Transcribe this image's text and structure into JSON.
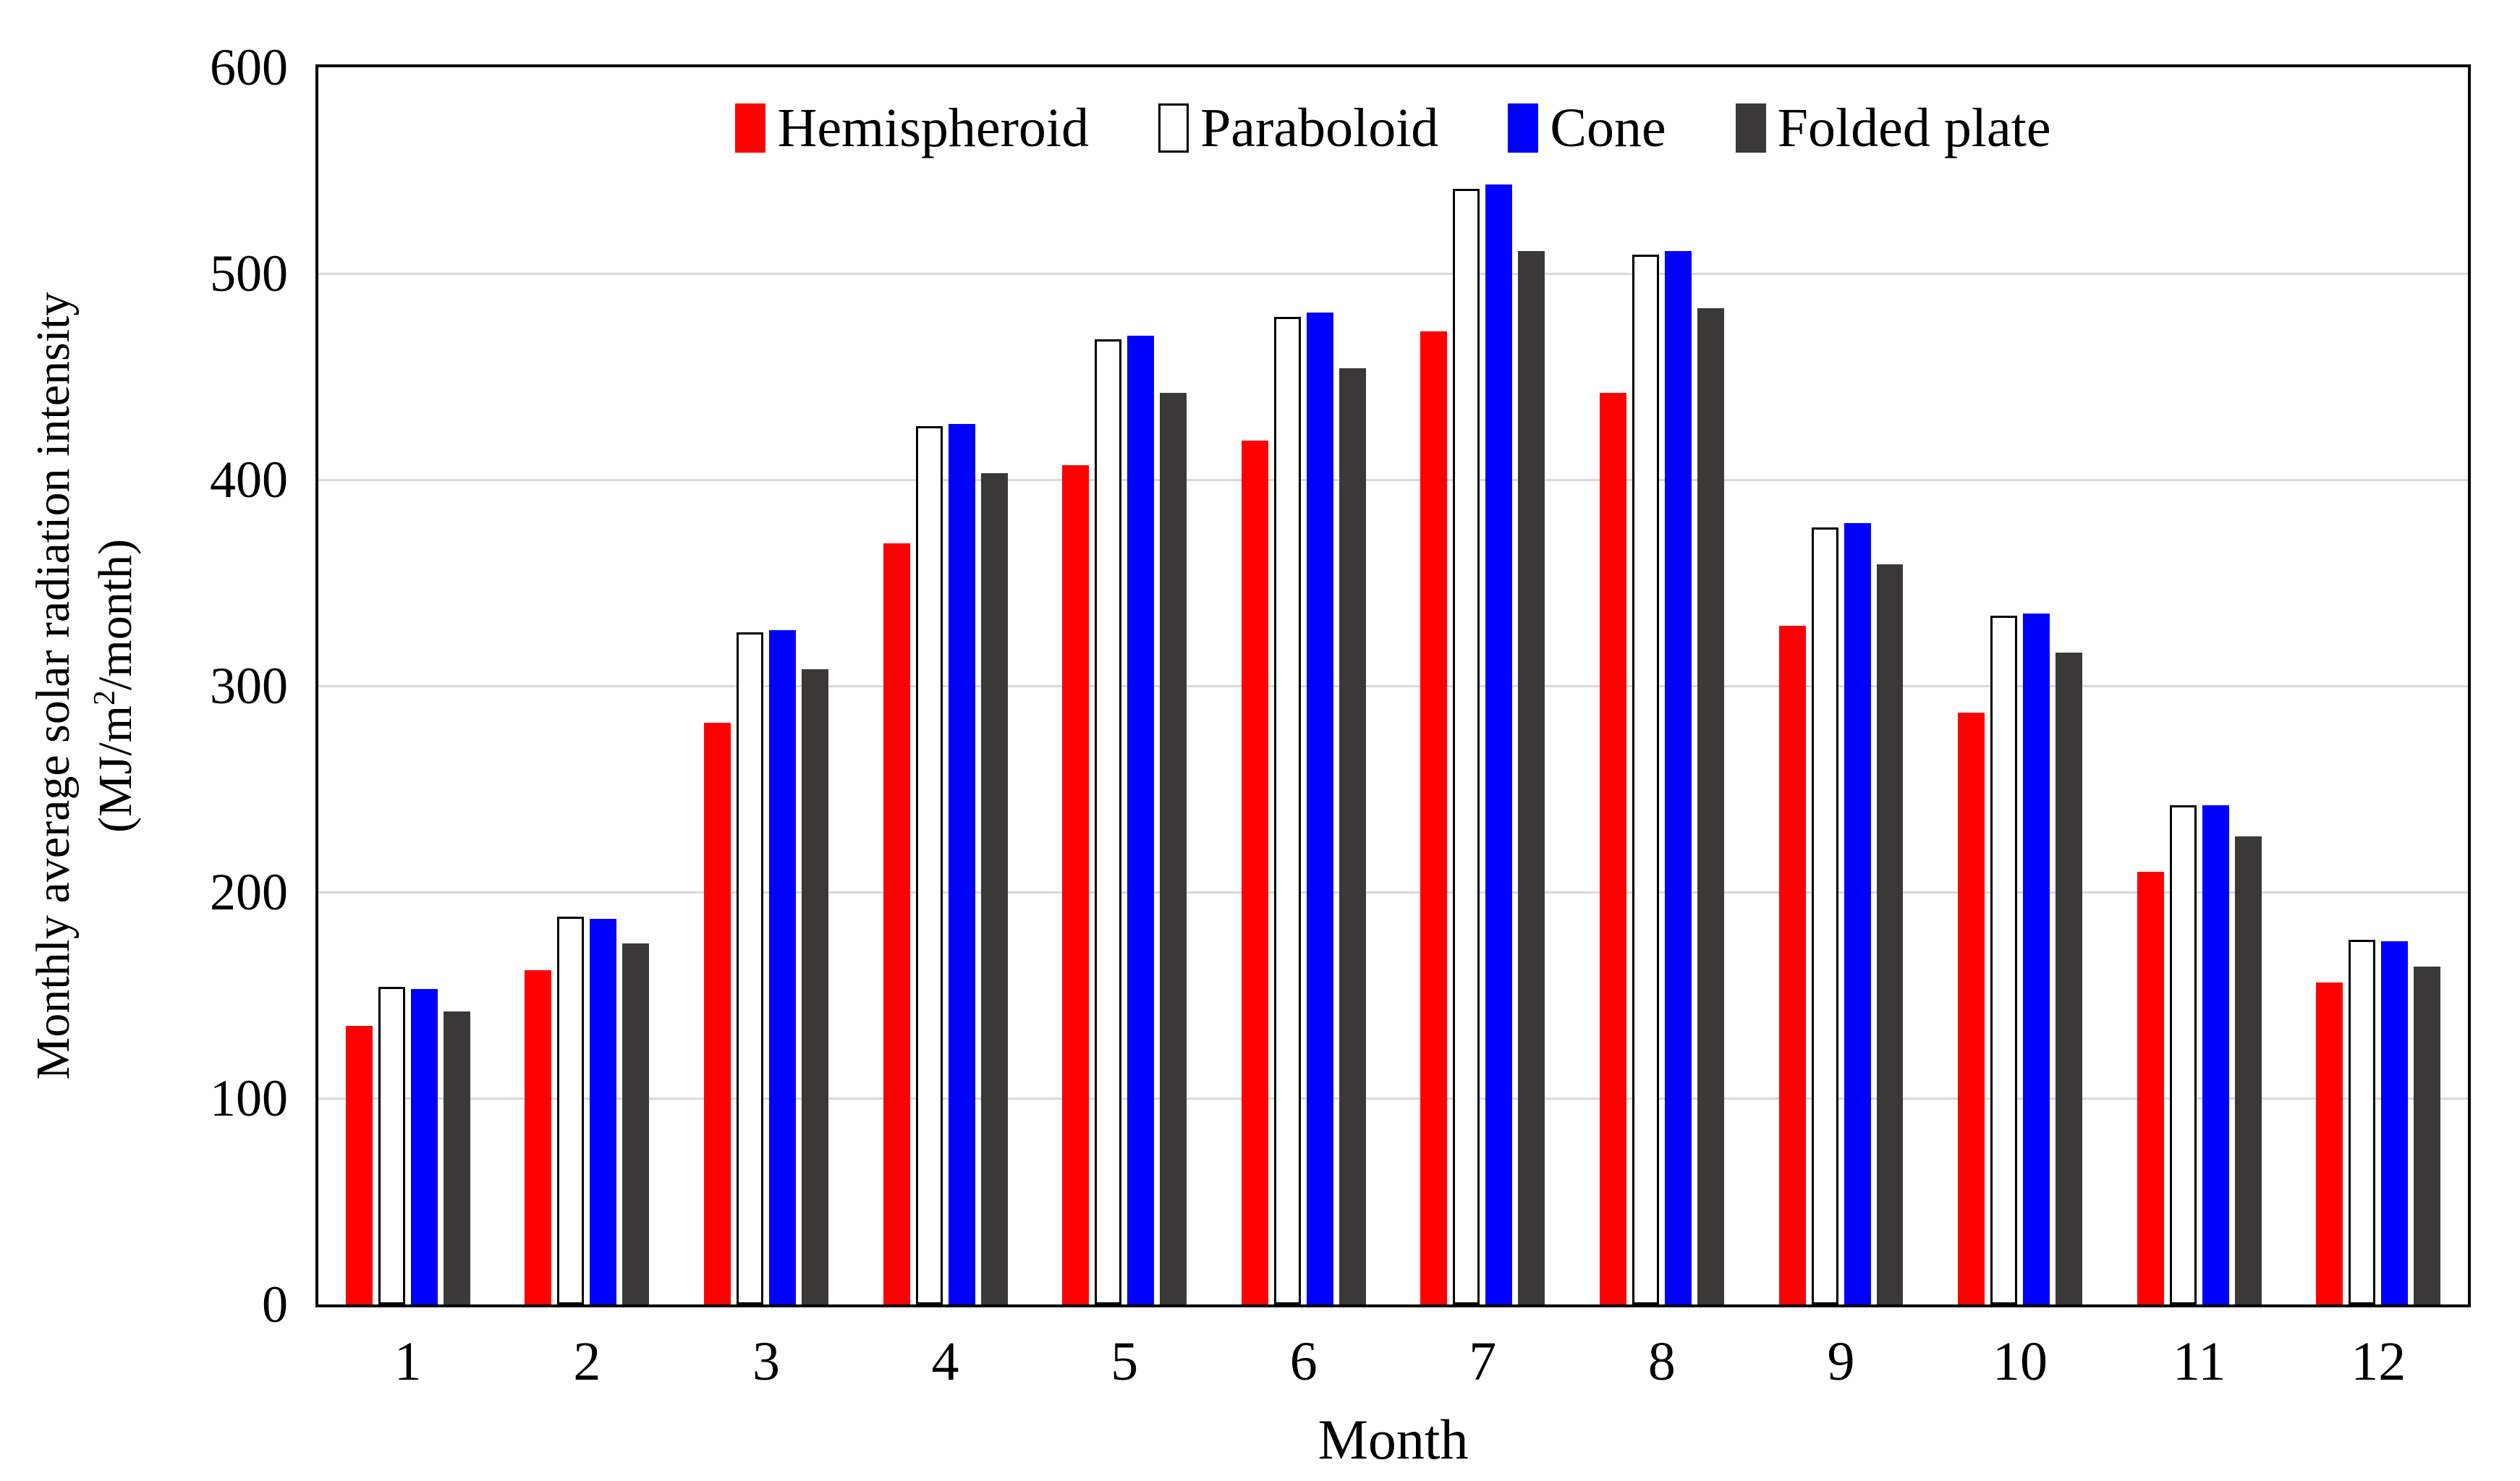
{
  "figure": {
    "background": "#ffffff",
    "frame_color": "#000000",
    "grid_color": "#d9d9d9",
    "y_axis": {
      "title_line1": "Monthly average solar radiation intensity",
      "title_line2_prefix": "(MJ/m",
      "title_line2_sup": "2",
      "title_line2_suffix": "/month)",
      "tick_labels": [
        "0",
        "100",
        "200",
        "300",
        "400",
        "500",
        "600"
      ],
      "tick_values": [
        0,
        100,
        200,
        300,
        400,
        500,
        600
      ],
      "max": 600
    },
    "x_axis": {
      "title": "Month",
      "labels": [
        "1",
        "2",
        "3",
        "4",
        "5",
        "6",
        "7",
        "8",
        "9",
        "10",
        "11",
        "12"
      ]
    }
  },
  "chart_data": {
    "type": "bar",
    "title": "",
    "xlabel": "Month",
    "ylabel": "Monthly average solar radiation intensity (MJ/m2/month)",
    "ylim": [
      0,
      600
    ],
    "grid": true,
    "gridline_step": 100,
    "legend_position": "top-inside",
    "categories": [
      "1",
      "2",
      "3",
      "4",
      "5",
      "6",
      "7",
      "8",
      "9",
      "10",
      "11",
      "12"
    ],
    "series": [
      {
        "name": "Hemispheroid",
        "color": "#ff0000",
        "border": "none",
        "values": [
          135,
          162,
          282,
          369,
          407,
          419,
          472,
          442,
          329,
          287,
          210,
          156
        ]
      },
      {
        "name": "Paraboloid",
        "color": "#ffffff",
        "border": "#000000",
        "values": [
          154,
          188,
          326,
          426,
          468,
          479,
          541,
          509,
          377,
          334,
          242,
          177
        ]
      },
      {
        "name": "Cone",
        "color": "#0000ff",
        "border": "none",
        "values": [
          153,
          187,
          327,
          427,
          470,
          481,
          543,
          511,
          379,
          335,
          242,
          176
        ]
      },
      {
        "name": "Folded plate",
        "color": "#3b3838",
        "border": "none",
        "values": [
          142,
          175,
          308,
          403,
          442,
          454,
          511,
          483,
          359,
          316,
          227,
          164
        ]
      }
    ]
  }
}
